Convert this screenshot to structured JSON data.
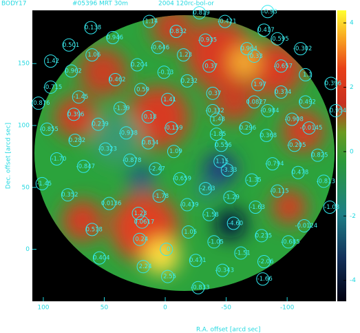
{
  "chart_data": {
    "type": "scatter",
    "title": "BODY17",
    "subtitle": "#05396 MRT 30m",
    "annotation": "2004 120rc-bol-or",
    "x_label": "R.A. offset [arcd sec]",
    "y_label": "Dec. offset [arcd sec]",
    "xlim": [
      109,
      -140
    ],
    "ylim": [
      -42,
      193
    ],
    "xticks": [
      100,
      50,
      0,
      -50,
      -100
    ],
    "yticks": [
      0,
      50,
      100,
      150
    ],
    "colorbar": {
      "lim": [
        -4.65,
        4.39
      ],
      "ticks": [
        -4,
        -2,
        0,
        2,
        4
      ]
    },
    "x": [
      61,
      13,
      -28,
      -49,
      -84,
      79,
      43,
      -9,
      -81,
      6,
      -33,
      -67,
      -92,
      -111,
      60,
      -15,
      -73,
      94,
      77,
      23,
      -36,
      -95,
      -115,
      41,
      1,
      -18,
      94,
      20,
      -76,
      -136,
      -39,
      -95,
      104,
      71,
      -2,
      -115,
      -39,
      -73,
      37,
      -84,
      -140,
      75,
      14,
      -42,
      -104,
      55,
      -5,
      -66,
      -118,
      97,
      32,
      -42,
      -83,
      74,
      14,
      -46,
      -106,
      49,
      -7,
      -125,
      89,
      29,
      -45,
      -88,
      67,
      8,
      -51,
      -109,
      -12,
      -33,
      -71,
      -130,
      101,
      -92,
      80,
      5,
      -53,
      46,
      -18,
      -74,
      -135,
      22,
      -36,
      60,
      19,
      -56,
      -114,
      -19,
      21,
      -40,
      -79,
      -101,
      -1,
      54,
      -62,
      -25,
      -81,
      18,
      -47,
      -2,
      -80,
      -27
    ],
    "y": [
      179,
      184,
      191,
      184,
      192,
      165,
      171,
      176,
      177,
      163,
      169,
      162,
      170,
      162,
      157,
      157,
      156,
      152,
      144,
      149,
      148,
      148,
      141,
      137,
      143,
      136,
      131,
      129,
      133,
      134,
      126,
      127,
      118,
      123,
      121,
      119,
      112,
      119,
      114,
      112,
      112,
      109,
      107,
      105,
      105,
      101,
      98,
      98,
      98,
      97,
      94,
      93,
      92,
      88,
      86,
      84,
      84,
      81,
      79,
      76,
      73,
      72,
      71,
      69,
      67,
      65,
      64,
      62,
      57,
      49,
      56,
      55,
      53,
      47,
      44,
      43,
      42,
      37,
      36,
      34,
      34,
      29,
      28,
      16,
      22,
      21,
      19,
      14,
      8,
      6,
      11,
      6,
      0,
      -7,
      -3,
      -9,
      -10,
      -14,
      -17,
      -22,
      -24,
      -31
    ],
    "labels": [
      "0.138",
      "1.14",
      "0.819",
      "-0.421",
      "-0.93",
      "0.501",
      "0.946",
      "0.832",
      "0.417",
      "-0.646",
      "-0.935",
      "0.964",
      "-0.595",
      "-0.302",
      "1.06",
      "1.23",
      "0.33",
      "1.42",
      "0.962",
      "0.204",
      "0.37",
      "-0.657",
      "1.1",
      "0.462",
      "-0.13",
      "0.232",
      "-0.715",
      "0.59",
      "1.97",
      "0.396",
      "0.37",
      "0.374",
      "-0.876",
      "-1.45",
      "1.41",
      "0.492",
      "-0.332",
      "0.0827",
      "-1.39",
      "-0.984",
      "0.954",
      "0.396",
      "0.18",
      "1.48",
      "-0.908",
      "0.239",
      "-0.159",
      "0.296",
      "-0.0145",
      "-0.855",
      "-0.938",
      "-1.85",
      "0.368",
      "0.282",
      "0.834",
      "0.556",
      "-0.205",
      "-0.323",
      "1.09",
      "0.825",
      "-1.70",
      "-0.878",
      "1.15",
      "-0.794",
      "-0.847",
      "-2.47",
      "-3.33",
      "0.478",
      "-0.659",
      "-2.63",
      "-1.35",
      "-0.813",
      "-1.45",
      "-0.115",
      "0.352",
      "-1.78",
      "-1.29",
      "0.0136",
      "-0.439",
      "-1.63",
      "-1.03",
      "1.23",
      "-1.58",
      "0.518",
      "0.0617",
      "-4.60",
      "-0.0124",
      "1.05",
      "0.24",
      "-1.05",
      "0.235",
      "-0.685",
      "0",
      "0.404",
      "-1.51",
      "0.471",
      "-2.06",
      "2.24",
      "-0.343",
      "2.55",
      "-1.66",
      "-0.833"
    ]
  }
}
